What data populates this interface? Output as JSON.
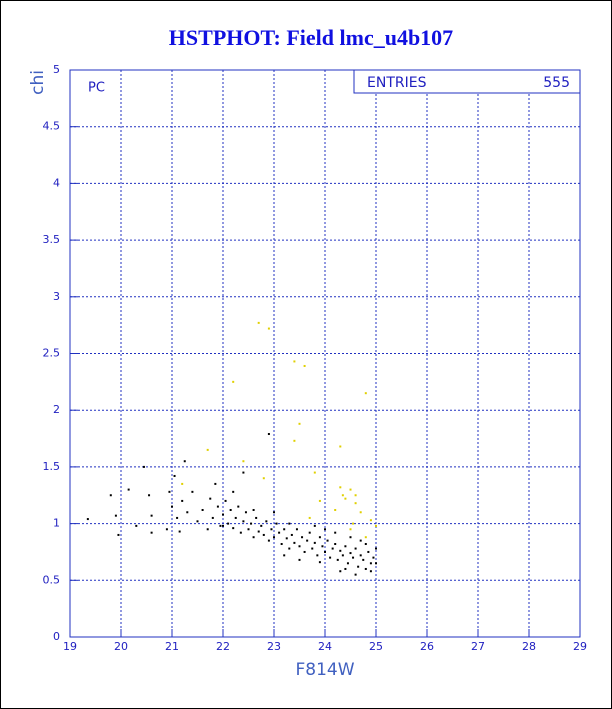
{
  "chart_data": {
    "type": "scatter",
    "title": "HSTPHOT: Field lmc_u4b107",
    "x_label": "F814W",
    "y_label": "chi",
    "annotation": "PC",
    "stats_label": "ENTRIES",
    "stats_value": "555",
    "xlim": [
      19,
      29
    ],
    "xticks": [
      19,
      20,
      21,
      22,
      23,
      24,
      25,
      26,
      27,
      28,
      29
    ],
    "ylim": [
      0,
      5
    ],
    "yticks": [
      0,
      0.5,
      1,
      1.5,
      2,
      2.5,
      3,
      3.5,
      4,
      4.5,
      5
    ],
    "grid": true,
    "series": [
      {
        "color": "#000000",
        "x": [
          19.35,
          19.8,
          19.9,
          19.95,
          20.15,
          20.3,
          20.45,
          20.55,
          20.6,
          20.6,
          20.9,
          20.95,
          21.0,
          21.05,
          21.1,
          21.15,
          21.2,
          21.25,
          21.3,
          21.4,
          21.5,
          21.6,
          21.7,
          21.75,
          21.8,
          21.85,
          21.9,
          21.95,
          22.0,
          22.05,
          22.1,
          22.15,
          22.2,
          22.25,
          22.3,
          22.35,
          22.4,
          22.45,
          22.5,
          22.55,
          22.6,
          22.65,
          22.7,
          22.75,
          22.8,
          22.85,
          22.9,
          22.9,
          22.95,
          23.0,
          23.05,
          23.1,
          23.15,
          23.2,
          23.25,
          23.3,
          23.35,
          23.4,
          23.45,
          23.5,
          23.55,
          23.6,
          23.65,
          23.7,
          23.75,
          23.8,
          23.85,
          23.9,
          23.95,
          24.0,
          24.05,
          24.1,
          24.15,
          24.2,
          24.25,
          24.3,
          24.35,
          24.4,
          24.45,
          24.5,
          24.55,
          24.6,
          24.65,
          24.7,
          24.75,
          24.8,
          24.85,
          24.9,
          24.95,
          25.0,
          24.3,
          24.6,
          24.9,
          23.5,
          23.9,
          22.6,
          23.0,
          23.3,
          24.0,
          24.5,
          24.8,
          22.2,
          22.4,
          23.8,
          24.2,
          23.2,
          24.7,
          25.0,
          24.4,
          22.0
        ],
        "values": [
          1.04,
          1.25,
          1.07,
          0.9,
          1.3,
          0.98,
          1.5,
          1.25,
          1.07,
          0.92,
          0.95,
          1.28,
          1.15,
          1.42,
          1.05,
          0.93,
          1.2,
          1.55,
          1.1,
          1.28,
          1.02,
          1.12,
          0.95,
          1.22,
          1.05,
          1.35,
          1.15,
          0.98,
          1.08,
          1.2,
          1.0,
          1.12,
          0.96,
          1.05,
          1.15,
          0.92,
          1.02,
          1.1,
          0.95,
          1.0,
          0.88,
          1.05,
          0.93,
          0.98,
          0.9,
          1.02,
          0.85,
          1.79,
          0.95,
          0.88,
          1.0,
          0.92,
          0.82,
          0.95,
          0.87,
          0.78,
          0.9,
          0.83,
          0.95,
          0.8,
          0.88,
          0.75,
          0.85,
          0.92,
          0.78,
          0.83,
          0.72,
          0.88,
          0.8,
          0.75,
          0.85,
          0.7,
          0.78,
          0.82,
          0.68,
          0.76,
          0.72,
          0.8,
          0.65,
          0.74,
          0.7,
          0.78,
          0.62,
          0.72,
          0.68,
          0.6,
          0.75,
          0.65,
          0.7,
          0.78,
          0.58,
          0.55,
          0.58,
          0.68,
          0.66,
          1.12,
          1.1,
          1.0,
          0.95,
          0.88,
          0.82,
          1.28,
          1.45,
          0.98,
          0.92,
          0.72,
          0.85,
          0.65,
          0.6,
          0.98
        ]
      },
      {
        "color": "#e0d000",
        "x": [
          22.7,
          22.9,
          23.4,
          23.6,
          22.2,
          23.5,
          23.4,
          24.3,
          24.8,
          21.7,
          22.4,
          21.2,
          24.3,
          24.5,
          24.4,
          24.6,
          24.2,
          24.7,
          24.9,
          25.0,
          24.5,
          24.8,
          23.9,
          23.7,
          24.55,
          24.35,
          23.8,
          24.6,
          22.8
        ],
        "values": [
          2.77,
          2.72,
          2.43,
          2.39,
          2.25,
          1.88,
          1.73,
          1.68,
          2.15,
          1.65,
          1.55,
          1.35,
          1.32,
          1.3,
          1.22,
          1.18,
          1.12,
          1.1,
          1.03,
          0.98,
          0.95,
          0.88,
          1.2,
          1.05,
          1.0,
          1.25,
          1.45,
          1.25,
          1.4
        ]
      }
    ]
  }
}
